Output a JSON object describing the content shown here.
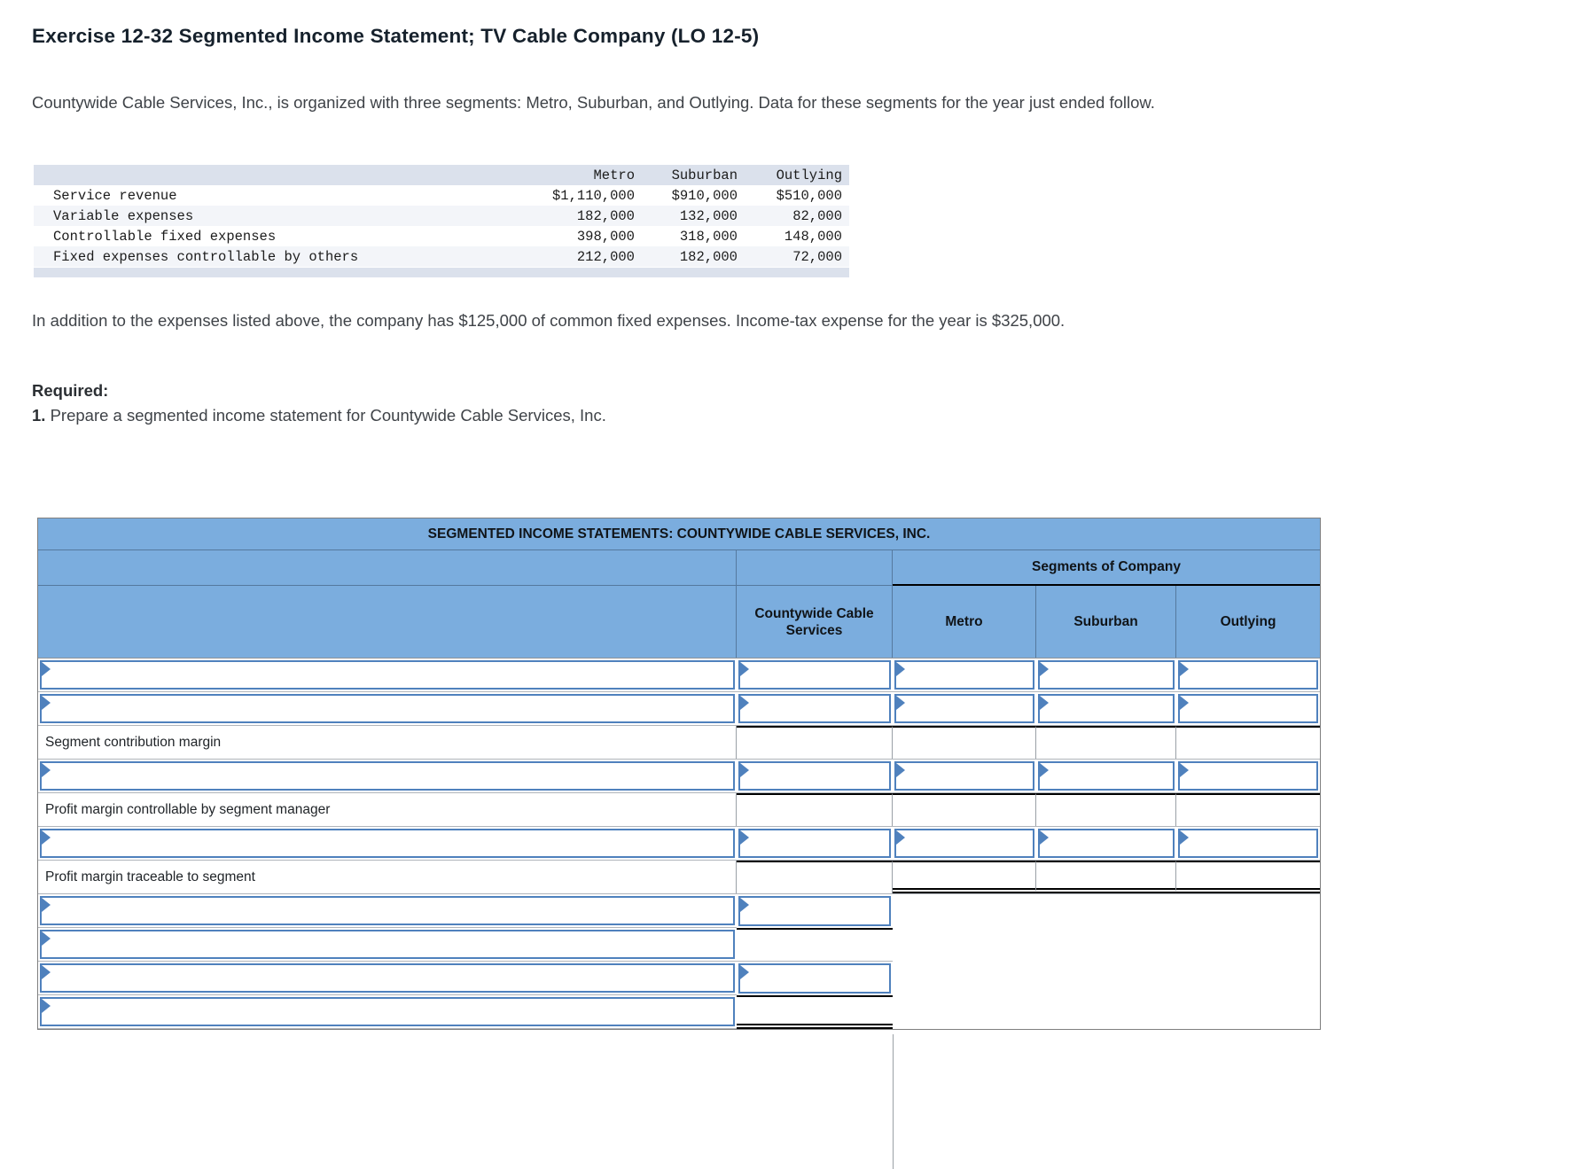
{
  "page": {
    "title": "Exercise 12-32 Segmented Income Statement; TV Cable Company (LO 12-5)",
    "intro": "Countywide Cable Services, Inc., is organized with three segments: Metro, Suburban, and Outlying. Data for these segments for the year just ended follow.",
    "note": "In addition to the expenses listed above, the company has $125,000 of common fixed expenses. Income-tax expense for the year is $325,000.",
    "required_label": "Required:",
    "required_number": "1.",
    "required_text": " Prepare a segmented income statement for Countywide Cable Services, Inc."
  },
  "data_table": {
    "columns": [
      "Metro",
      "Suburban",
      "Outlying"
    ],
    "rows": [
      {
        "label": "Service revenue",
        "values": [
          "$1,110,000",
          "$910,000",
          "$510,000"
        ]
      },
      {
        "label": "Variable expenses",
        "values": [
          "182,000",
          "132,000",
          "82,000"
        ]
      },
      {
        "label": "Controllable fixed expenses",
        "values": [
          "398,000",
          "318,000",
          "148,000"
        ]
      },
      {
        "label": "Fixed expenses controllable by others",
        "values": [
          "212,000",
          "182,000",
          "72,000"
        ]
      }
    ]
  },
  "worksheet": {
    "title": "SEGMENTED INCOME STATEMENTS: COUNTYWIDE CABLE SERVICES, INC.",
    "segments_header": "Segments of Company",
    "columns": [
      "Countywide Cable Services",
      "Metro",
      "Suburban",
      "Outlying"
    ],
    "row_labels": {
      "scm": "Segment contribution margin",
      "pmc": "Profit margin controllable by segment manager",
      "pmt": "Profit margin traceable to segment"
    }
  },
  "colors": {
    "worksheet_header_blue": "#7badde",
    "input_cell_border_blue": "#4f81bd",
    "data_table_band": "#dbe1ec",
    "total_rule_black": "#000000"
  }
}
